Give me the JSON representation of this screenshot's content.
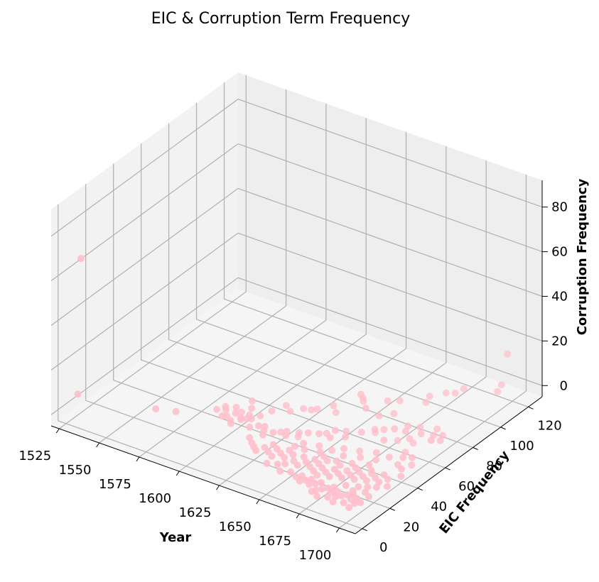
{
  "chart_data": {
    "type": "scatter",
    "title": "EIC & Corruption Term Frequency",
    "xlabel": "Year",
    "ylabel": "EIC Frequency",
    "zlabel": "Corruption Frequency",
    "xlim": [
      1520,
      1710
    ],
    "ylim": [
      -5,
      130
    ],
    "zlim": [
      -5,
      92
    ],
    "xticks": [
      1525,
      1550,
      1575,
      1600,
      1625,
      1650,
      1675,
      1700
    ],
    "yticks": [
      0,
      20,
      40,
      60,
      80,
      100,
      120
    ],
    "zticks": [
      0,
      20,
      40,
      60,
      80
    ],
    "grid": true,
    "point_color": "#ffc0cb",
    "points": [
      [
        1530,
        5,
        68
      ],
      [
        1522,
        12,
        2
      ],
      [
        1562,
        22,
        1
      ],
      [
        1572,
        25,
        1
      ],
      [
        1690,
        128,
        10
      ],
      [
        1695,
        118,
        2
      ],
      [
        1696,
        114,
        1
      ],
      [
        1680,
        108,
        1
      ],
      [
        1679,
        103,
        1
      ],
      [
        1675,
        101,
        1
      ],
      [
        1598,
        50,
        1
      ],
      [
        1602,
        45,
        1
      ],
      [
        1640,
        80,
        1
      ],
      [
        1643,
        78,
        1
      ],
      [
        1645,
        76,
        1
      ],
      [
        1655,
        82,
        1
      ],
      [
        1660,
        85,
        1
      ],
      [
        1670,
        95,
        1
      ],
      [
        1672,
        90,
        1
      ],
      [
        1630,
        60,
        1
      ],
      [
        1628,
        58,
        1
      ],
      [
        1635,
        66,
        1
      ],
      [
        1650,
        72,
        1
      ],
      [
        1660,
        70,
        1
      ],
      [
        1665,
        75,
        1
      ],
      [
        1640,
        62,
        1
      ],
      [
        1620,
        52,
        1
      ],
      [
        1612,
        48,
        1
      ],
      [
        1615,
        55,
        1
      ],
      [
        1624,
        57,
        1
      ],
      [
        1590,
        40,
        1
      ],
      [
        1595,
        42,
        1
      ],
      [
        1598,
        38,
        1
      ],
      [
        1600,
        40,
        1
      ],
      [
        1603,
        36,
        1
      ],
      [
        1605,
        40,
        1
      ],
      [
        1608,
        38,
        1
      ],
      [
        1610,
        42,
        1
      ],
      [
        1588,
        36,
        1
      ],
      [
        1592,
        38,
        1
      ],
      [
        1596,
        34,
        1
      ],
      [
        1600,
        32,
        1
      ],
      [
        1604,
        35,
        1
      ],
      [
        1606,
        37,
        1
      ],
      [
        1594,
        33,
        1
      ],
      [
        1602,
        30,
        1
      ],
      [
        1612,
        32,
        1
      ],
      [
        1615,
        35,
        1
      ],
      [
        1618,
        36,
        1
      ],
      [
        1620,
        33,
        1
      ],
      [
        1622,
        30,
        1
      ],
      [
        1625,
        34,
        1
      ],
      [
        1628,
        36,
        1
      ],
      [
        1630,
        38,
        1
      ],
      [
        1632,
        35,
        1
      ],
      [
        1636,
        40,
        1
      ],
      [
        1638,
        37,
        1
      ],
      [
        1640,
        42,
        1
      ],
      [
        1645,
        44,
        1
      ],
      [
        1648,
        46,
        1
      ],
      [
        1650,
        50,
        1
      ],
      [
        1652,
        44,
        1
      ],
      [
        1655,
        52,
        1
      ],
      [
        1658,
        48,
        1
      ],
      [
        1662,
        55,
        1
      ],
      [
        1666,
        60,
        1
      ],
      [
        1668,
        58,
        1
      ],
      [
        1670,
        62,
        1
      ],
      [
        1674,
        65,
        1
      ],
      [
        1676,
        55,
        1
      ],
      [
        1678,
        70,
        1
      ],
      [
        1680,
        66,
        1
      ],
      [
        1682,
        58,
        1
      ],
      [
        1684,
        72,
        1
      ],
      [
        1686,
        62,
        1
      ],
      [
        1688,
        68,
        1
      ],
      [
        1690,
        60,
        1
      ],
      [
        1692,
        75,
        1
      ],
      [
        1694,
        70,
        1
      ],
      [
        1696,
        66,
        1
      ],
      [
        1698,
        72,
        1
      ],
      [
        1700,
        68,
        1
      ],
      [
        1618,
        25,
        1
      ],
      [
        1622,
        22,
        1
      ],
      [
        1625,
        20,
        1
      ],
      [
        1628,
        18,
        1
      ],
      [
        1630,
        22,
        1
      ],
      [
        1632,
        26,
        1
      ],
      [
        1634,
        20,
        1
      ],
      [
        1636,
        24,
        1
      ],
      [
        1638,
        18,
        1
      ],
      [
        1640,
        22,
        1
      ],
      [
        1642,
        26,
        1
      ],
      [
        1644,
        20,
        1
      ],
      [
        1646,
        24,
        1
      ],
      [
        1648,
        16,
        1
      ],
      [
        1650,
        20,
        1
      ],
      [
        1652,
        25,
        1
      ],
      [
        1654,
        18,
        1
      ],
      [
        1656,
        22,
        1
      ],
      [
        1658,
        26,
        1
      ],
      [
        1660,
        20,
        1
      ],
      [
        1662,
        24,
        1
      ],
      [
        1664,
        18,
        1
      ],
      [
        1666,
        22,
        1
      ],
      [
        1668,
        16,
        1
      ],
      [
        1670,
        20,
        1
      ],
      [
        1672,
        24,
        1
      ],
      [
        1674,
        18,
        1
      ],
      [
        1676,
        22,
        1
      ],
      [
        1678,
        26,
        1
      ],
      [
        1680,
        20,
        1
      ],
      [
        1682,
        24,
        1
      ],
      [
        1684,
        28,
        1
      ],
      [
        1686,
        22,
        1
      ],
      [
        1688,
        26,
        1
      ],
      [
        1690,
        30,
        1
      ],
      [
        1692,
        24,
        1
      ],
      [
        1694,
        28,
        1
      ],
      [
        1696,
        32,
        1
      ],
      [
        1698,
        26,
        1
      ],
      [
        1700,
        30,
        1
      ],
      [
        1660,
        10,
        1
      ],
      [
        1662,
        12,
        1
      ],
      [
        1664,
        8,
        1
      ],
      [
        1666,
        10,
        1
      ],
      [
        1668,
        12,
        1
      ],
      [
        1670,
        8,
        1
      ],
      [
        1672,
        10,
        1
      ],
      [
        1674,
        12,
        1
      ],
      [
        1676,
        6,
        1
      ],
      [
        1678,
        8,
        1
      ],
      [
        1680,
        10,
        1
      ],
      [
        1682,
        12,
        1
      ],
      [
        1684,
        8,
        1
      ],
      [
        1686,
        10,
        1
      ],
      [
        1688,
        6,
        1
      ],
      [
        1690,
        8,
        1
      ],
      [
        1692,
        10,
        1
      ],
      [
        1694,
        12,
        1
      ],
      [
        1696,
        8,
        1
      ],
      [
        1698,
        10,
        1
      ],
      [
        1700,
        6,
        1
      ],
      [
        1702,
        8,
        1
      ],
      [
        1675,
        4,
        1
      ],
      [
        1685,
        4,
        1
      ],
      [
        1695,
        4,
        1
      ],
      [
        1700,
        2,
        1
      ],
      [
        1690,
        2,
        1
      ],
      [
        1680,
        2,
        1
      ],
      [
        1686,
        16,
        1
      ],
      [
        1692,
        18,
        1
      ],
      [
        1698,
        16,
        1
      ],
      [
        1702,
        14,
        1
      ],
      [
        1640,
        12,
        1
      ],
      [
        1645,
        14,
        1
      ],
      [
        1650,
        10,
        1
      ],
      [
        1655,
        12,
        1
      ],
      [
        1700,
        40,
        1
      ],
      [
        1702,
        45,
        1
      ],
      [
        1698,
        50,
        1
      ],
      [
        1704,
        35,
        1
      ],
      [
        1700,
        22,
        1
      ],
      [
        1704,
        25,
        1
      ],
      [
        1696,
        42,
        1
      ],
      [
        1694,
        48,
        1
      ],
      [
        1692,
        52,
        1
      ],
      [
        1688,
        45,
        1
      ],
      [
        1684,
        40,
        1
      ],
      [
        1680,
        45,
        1
      ],
      [
        1676,
        38,
        1
      ],
      [
        1672,
        42,
        1
      ],
      [
        1668,
        35,
        1
      ],
      [
        1664,
        40,
        1
      ],
      [
        1660,
        36,
        1
      ],
      [
        1656,
        32,
        1
      ],
      [
        1652,
        36,
        1
      ],
      [
        1648,
        30,
        1
      ],
      [
        1644,
        34,
        1
      ],
      [
        1642,
        30,
        1
      ],
      [
        1696,
        20,
        1
      ],
      [
        1692,
        14,
        1
      ],
      [
        1688,
        32,
        1
      ],
      [
        1684,
        35,
        1
      ],
      [
        1680,
        30,
        1
      ],
      [
        1676,
        32,
        1
      ],
      [
        1672,
        28,
        1
      ],
      [
        1668,
        30,
        1
      ],
      [
        1664,
        28,
        1
      ],
      [
        1660,
        30,
        1
      ]
    ]
  }
}
